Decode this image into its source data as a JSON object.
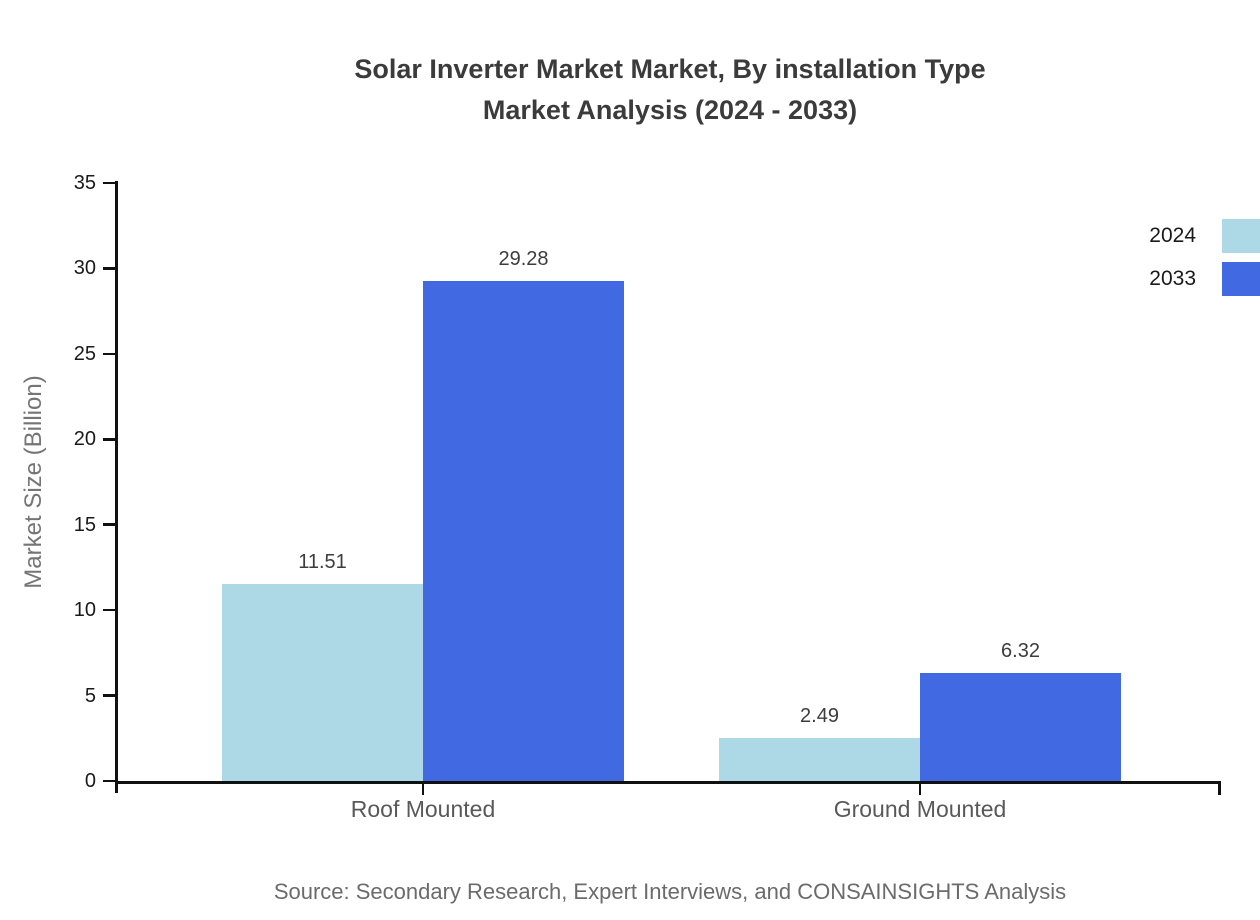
{
  "title": {
    "line1": "Solar Inverter Market Market, By installation Type",
    "line2": "Market Analysis (2024 - 2033)"
  },
  "y_axis": {
    "label": "Market Size (Billion)"
  },
  "legend": {
    "items": [
      {
        "label": "2024",
        "color": "#ADD8E6"
      },
      {
        "label": "2033",
        "color": "#4169E1"
      }
    ]
  },
  "footer": {
    "source": "Source: Secondary Research, Expert Interviews, and CONSAINSIGHTS Analysis"
  },
  "colors": {
    "series_2024": "#ADD8E6",
    "series_2033": "#4169E1",
    "axis": "#111111",
    "title_text": "#3b3b3b",
    "category_text": "#595959",
    "value_text": "#3d3d3d"
  },
  "chart_data": {
    "type": "bar",
    "title": "Solar Inverter Market Market, By installation Type Market Analysis (2024 - 2033)",
    "categories": [
      "Roof Mounted",
      "Ground Mounted"
    ],
    "series": [
      {
        "name": "2024",
        "color": "#ADD8E6",
        "values": [
          11.51,
          2.49
        ]
      },
      {
        "name": "2033",
        "color": "#4169E1",
        "values": [
          29.28,
          6.32
        ]
      }
    ],
    "xlabel": "",
    "ylabel": "Market Size (Billion)",
    "ylim": [
      0,
      35
    ],
    "yticks": [
      0,
      5,
      10,
      15,
      20,
      25,
      30,
      35
    ],
    "grid": false,
    "value_labels": true,
    "legend_position": "outside upper right, flush with right edge, label left of swatch",
    "source": "Source: Secondary Research, Expert Interviews, and CONSAINSIGHTS Analysis"
  }
}
